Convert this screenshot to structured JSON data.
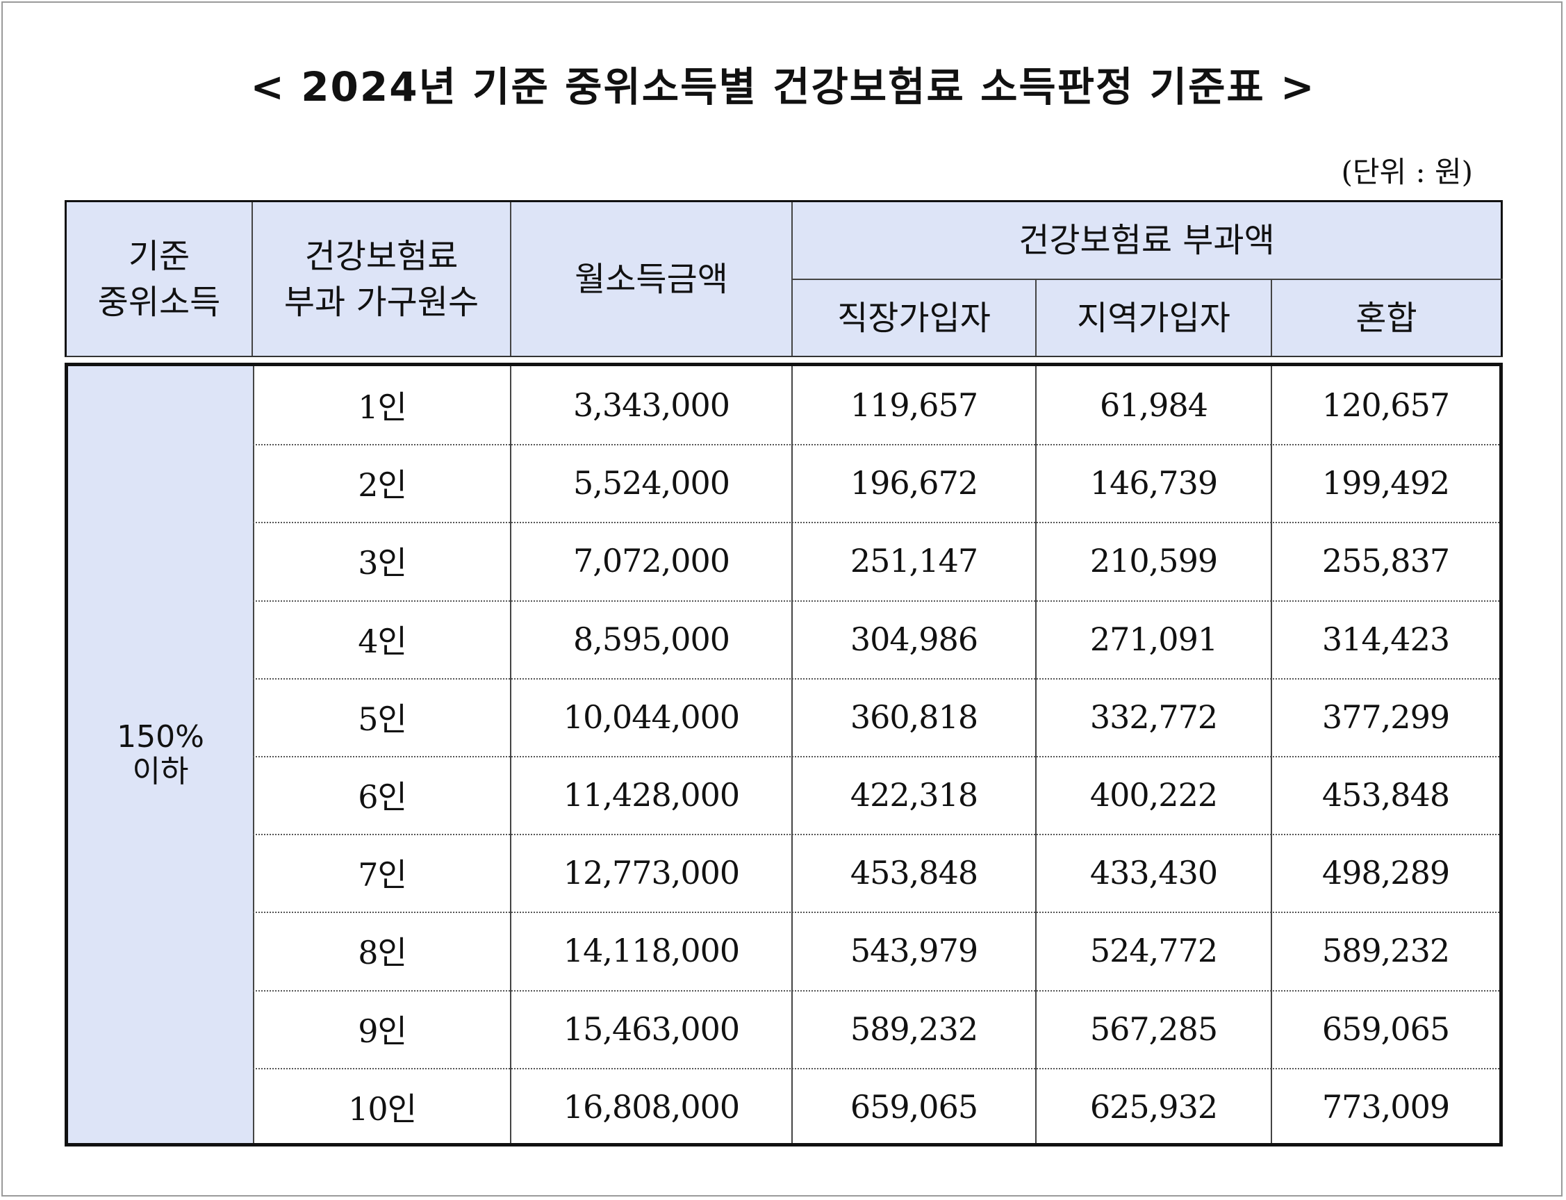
{
  "title": "< 2024년 기준 중위소득별 건강보험료 소득판정 기준표 >",
  "unit": "(단위 : 원)",
  "header": {
    "median_income": [
      "기준",
      "중위소득"
    ],
    "household": [
      "건강보험료",
      "부과 가구원수"
    ],
    "monthly_income": "월소득금액",
    "premium_group": "건강보험료 부과액",
    "employee": "직장가입자",
    "regional": "지역가입자",
    "mixed": "혼합"
  },
  "group_label": [
    "150%",
    "이하"
  ],
  "rows": [
    {
      "household": "1인",
      "income": "3,343,000",
      "employee": "119,657",
      "regional": "61,984",
      "mixed": "120,657"
    },
    {
      "household": "2인",
      "income": "5,524,000",
      "employee": "196,672",
      "regional": "146,739",
      "mixed": "199,492"
    },
    {
      "household": "3인",
      "income": "7,072,000",
      "employee": "251,147",
      "regional": "210,599",
      "mixed": "255,837"
    },
    {
      "household": "4인",
      "income": "8,595,000",
      "employee": "304,986",
      "regional": "271,091",
      "mixed": "314,423"
    },
    {
      "household": "5인",
      "income": "10,044,000",
      "employee": "360,818",
      "regional": "332,772",
      "mixed": "377,299"
    },
    {
      "household": "6인",
      "income": "11,428,000",
      "employee": "422,318",
      "regional": "400,222",
      "mixed": "453,848"
    },
    {
      "household": "7인",
      "income": "12,773,000",
      "employee": "453,848",
      "regional": "433,430",
      "mixed": "498,289"
    },
    {
      "household": "8인",
      "income": "14,118,000",
      "employee": "543,979",
      "regional": "524,772",
      "mixed": "589,232"
    },
    {
      "household": "9인",
      "income": "15,463,000",
      "employee": "589,232",
      "regional": "567,285",
      "mixed": "659,065"
    },
    {
      "household": "10인",
      "income": "16,808,000",
      "employee": "659,065",
      "regional": "625,932",
      "mixed": "773,009"
    }
  ]
}
